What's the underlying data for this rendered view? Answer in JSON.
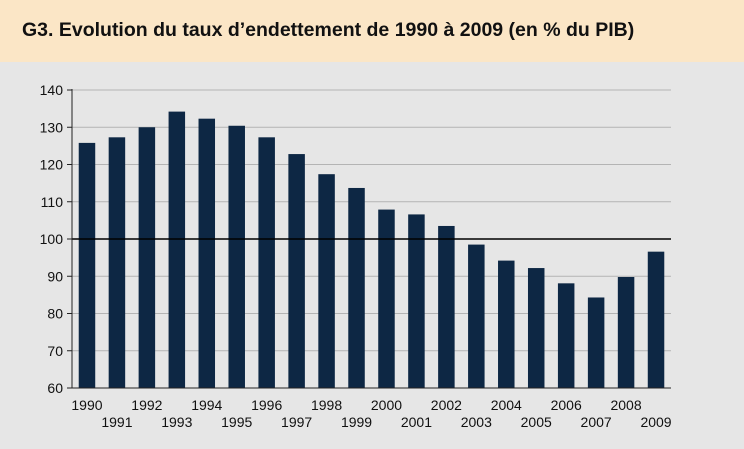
{
  "title": "G3. Evolution du taux d’endettement de 1990 à 2009 (en % du PIB)",
  "chart_data": {
    "type": "bar",
    "title": "G3. Evolution du taux d’endettement de 1990 à 2009 (en % du PIB)",
    "xlabel": "",
    "ylabel": "",
    "categories": [
      "1990",
      "1991",
      "1992",
      "1993",
      "1994",
      "1995",
      "1996",
      "1997",
      "1998",
      "1999",
      "2000",
      "2001",
      "2002",
      "2003",
      "2004",
      "2005",
      "2006",
      "2007",
      "2008",
      "2009"
    ],
    "values": [
      125.8,
      127.3,
      130,
      134.2,
      132.3,
      130.4,
      127.3,
      122.8,
      117.4,
      113.7,
      107.9,
      106.6,
      103.5,
      98.5,
      94.2,
      92.2,
      88.1,
      84.3,
      89.8,
      96.6
    ],
    "ylim": [
      60,
      140
    ],
    "yticks": [
      60,
      70,
      80,
      90,
      100,
      110,
      120,
      130,
      140
    ],
    "reference_line": 100,
    "grid": true,
    "legend": "none",
    "colors": {
      "bar": "#0d2744",
      "grid": "#b4b4b4",
      "background": "#e6e6e6",
      "header": "#fbe6c6"
    }
  }
}
